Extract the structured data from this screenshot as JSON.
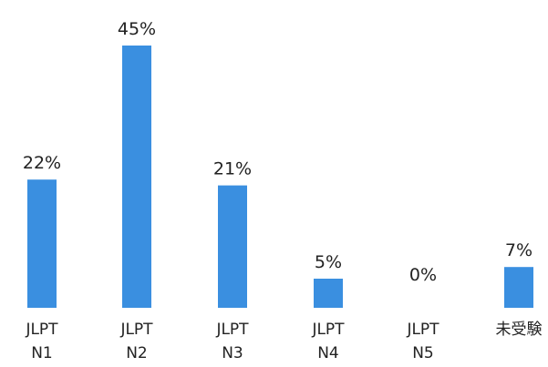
{
  "chart_data": {
    "type": "bar",
    "categories": [
      [
        "JLPT",
        "N1"
      ],
      [
        "JLPT",
        "N2"
      ],
      [
        "JLPT",
        "N3"
      ],
      [
        "JLPT",
        "N4"
      ],
      [
        "JLPT",
        "N5"
      ],
      [
        "未受験"
      ]
    ],
    "values": [
      22,
      45,
      21,
      5,
      0,
      7
    ],
    "value_labels": [
      "22%",
      "45%",
      "21%",
      "5%",
      "0%",
      "7%"
    ],
    "unit": "%",
    "ylim": [
      0,
      45
    ],
    "grid": false,
    "legend": "none",
    "colors": {
      "bar": "#3a8fe0",
      "text": "#222222",
      "background": "#ffffff"
    }
  }
}
